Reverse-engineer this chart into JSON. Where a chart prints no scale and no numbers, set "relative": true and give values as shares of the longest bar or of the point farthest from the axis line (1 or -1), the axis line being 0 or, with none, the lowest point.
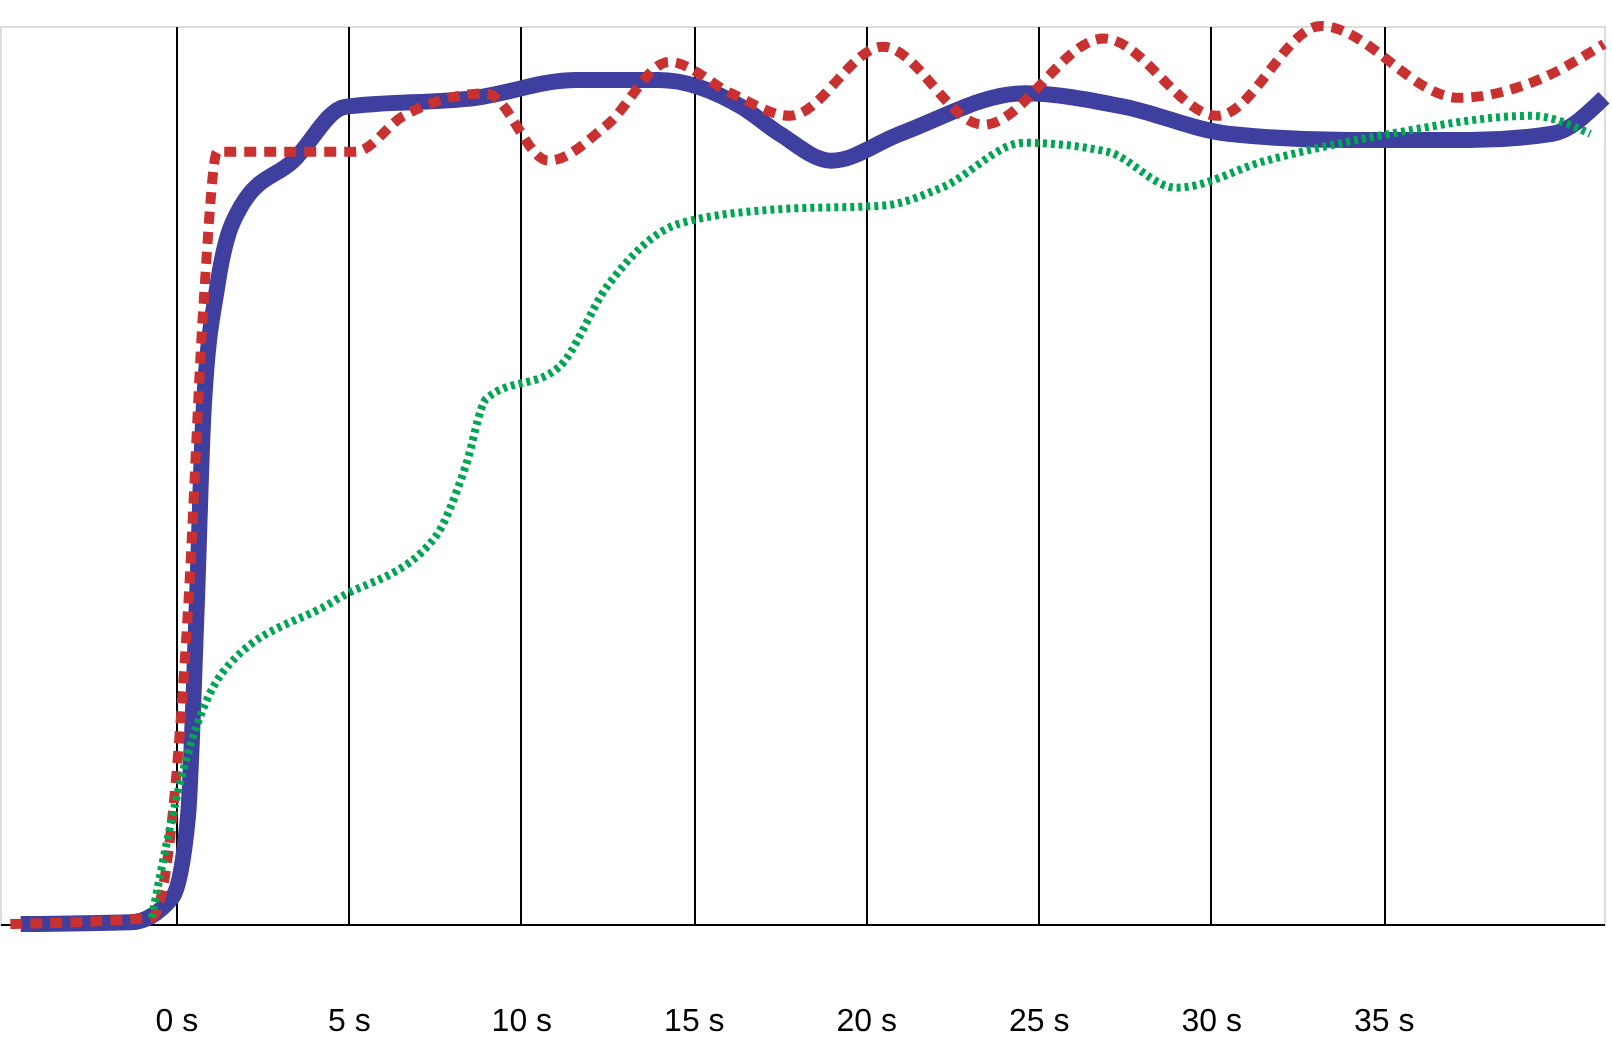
{
  "chart_data": {
    "type": "line",
    "relative": true,
    "grid": "x",
    "xlim": [
      -5.1,
      41.4
    ],
    "xticks": [
      {
        "value": 0,
        "label": "0 s"
      },
      {
        "value": 5,
        "label": "5 s"
      },
      {
        "value": 10,
        "label": "10 s"
      },
      {
        "value": 15,
        "label": "15 s"
      },
      {
        "value": 20,
        "label": "20 s"
      },
      {
        "value": 25,
        "label": "25 s"
      },
      {
        "value": 30,
        "label": "30 s"
      },
      {
        "value": 35,
        "label": "35 s"
      }
    ],
    "series": [
      {
        "color": "#3f3f9f",
        "line_style": "solid",
        "x": [
          -4.5,
          -1.3,
          -0.1,
          0.35,
          0.6,
          0.8,
          1.2,
          1.9,
          3.4,
          4.9,
          8.7,
          11.6,
          14,
          16.4,
          17.5,
          19,
          21,
          24.6,
          27.5,
          30.5,
          34,
          37.5,
          39.9,
          41.4
        ],
        "values": [
          0,
          0.002,
          0.03,
          0.12,
          0.35,
          0.57,
          0.71,
          0.8,
          0.85,
          0.91,
          0.92,
          0.94,
          0.94,
          0.91,
          0.88,
          0.85,
          0.88,
          0.925,
          0.91,
          0.88,
          0.873,
          0.873,
          0.88,
          0.92
        ]
      },
      {
        "color": "#c8312f",
        "line_style": "dashed",
        "x": [
          -4.8,
          -0.7,
          -0.1,
          0.35,
          0.8,
          1.2,
          3.4,
          5.2,
          6.6,
          9,
          10.8,
          12.5,
          14.3,
          16.1,
          17.8,
          20.5,
          23.4,
          26.9,
          30.2,
          33.2,
          37.2,
          39.3,
          41.4
        ],
        "values": [
          0,
          0.007,
          0.12,
          0.35,
          0.69,
          0.86,
          0.86,
          0.86,
          0.9,
          0.925,
          0.85,
          0.89,
          0.96,
          0.925,
          0.9,
          0.977,
          0.89,
          0.986,
          0.9,
          1.0,
          0.92,
          0.937,
          0.98
        ]
      },
      {
        "color": "#00a651",
        "line_style": "dotted",
        "x": [
          -0.7,
          0.35,
          1.35,
          4.6,
          7.5,
          8.4,
          9,
          11.1,
          12.5,
          14.6,
          17.5,
          20.5,
          22.2,
          24.6,
          27,
          29,
          31.6,
          35.2,
          39.3,
          41
        ],
        "values": [
          0.007,
          0.19,
          0.28,
          0.36,
          0.43,
          0.51,
          0.585,
          0.62,
          0.71,
          0.78,
          0.796,
          0.8,
          0.82,
          0.87,
          0.86,
          0.82,
          0.85,
          0.88,
          0.9,
          0.88
        ]
      }
    ]
  }
}
